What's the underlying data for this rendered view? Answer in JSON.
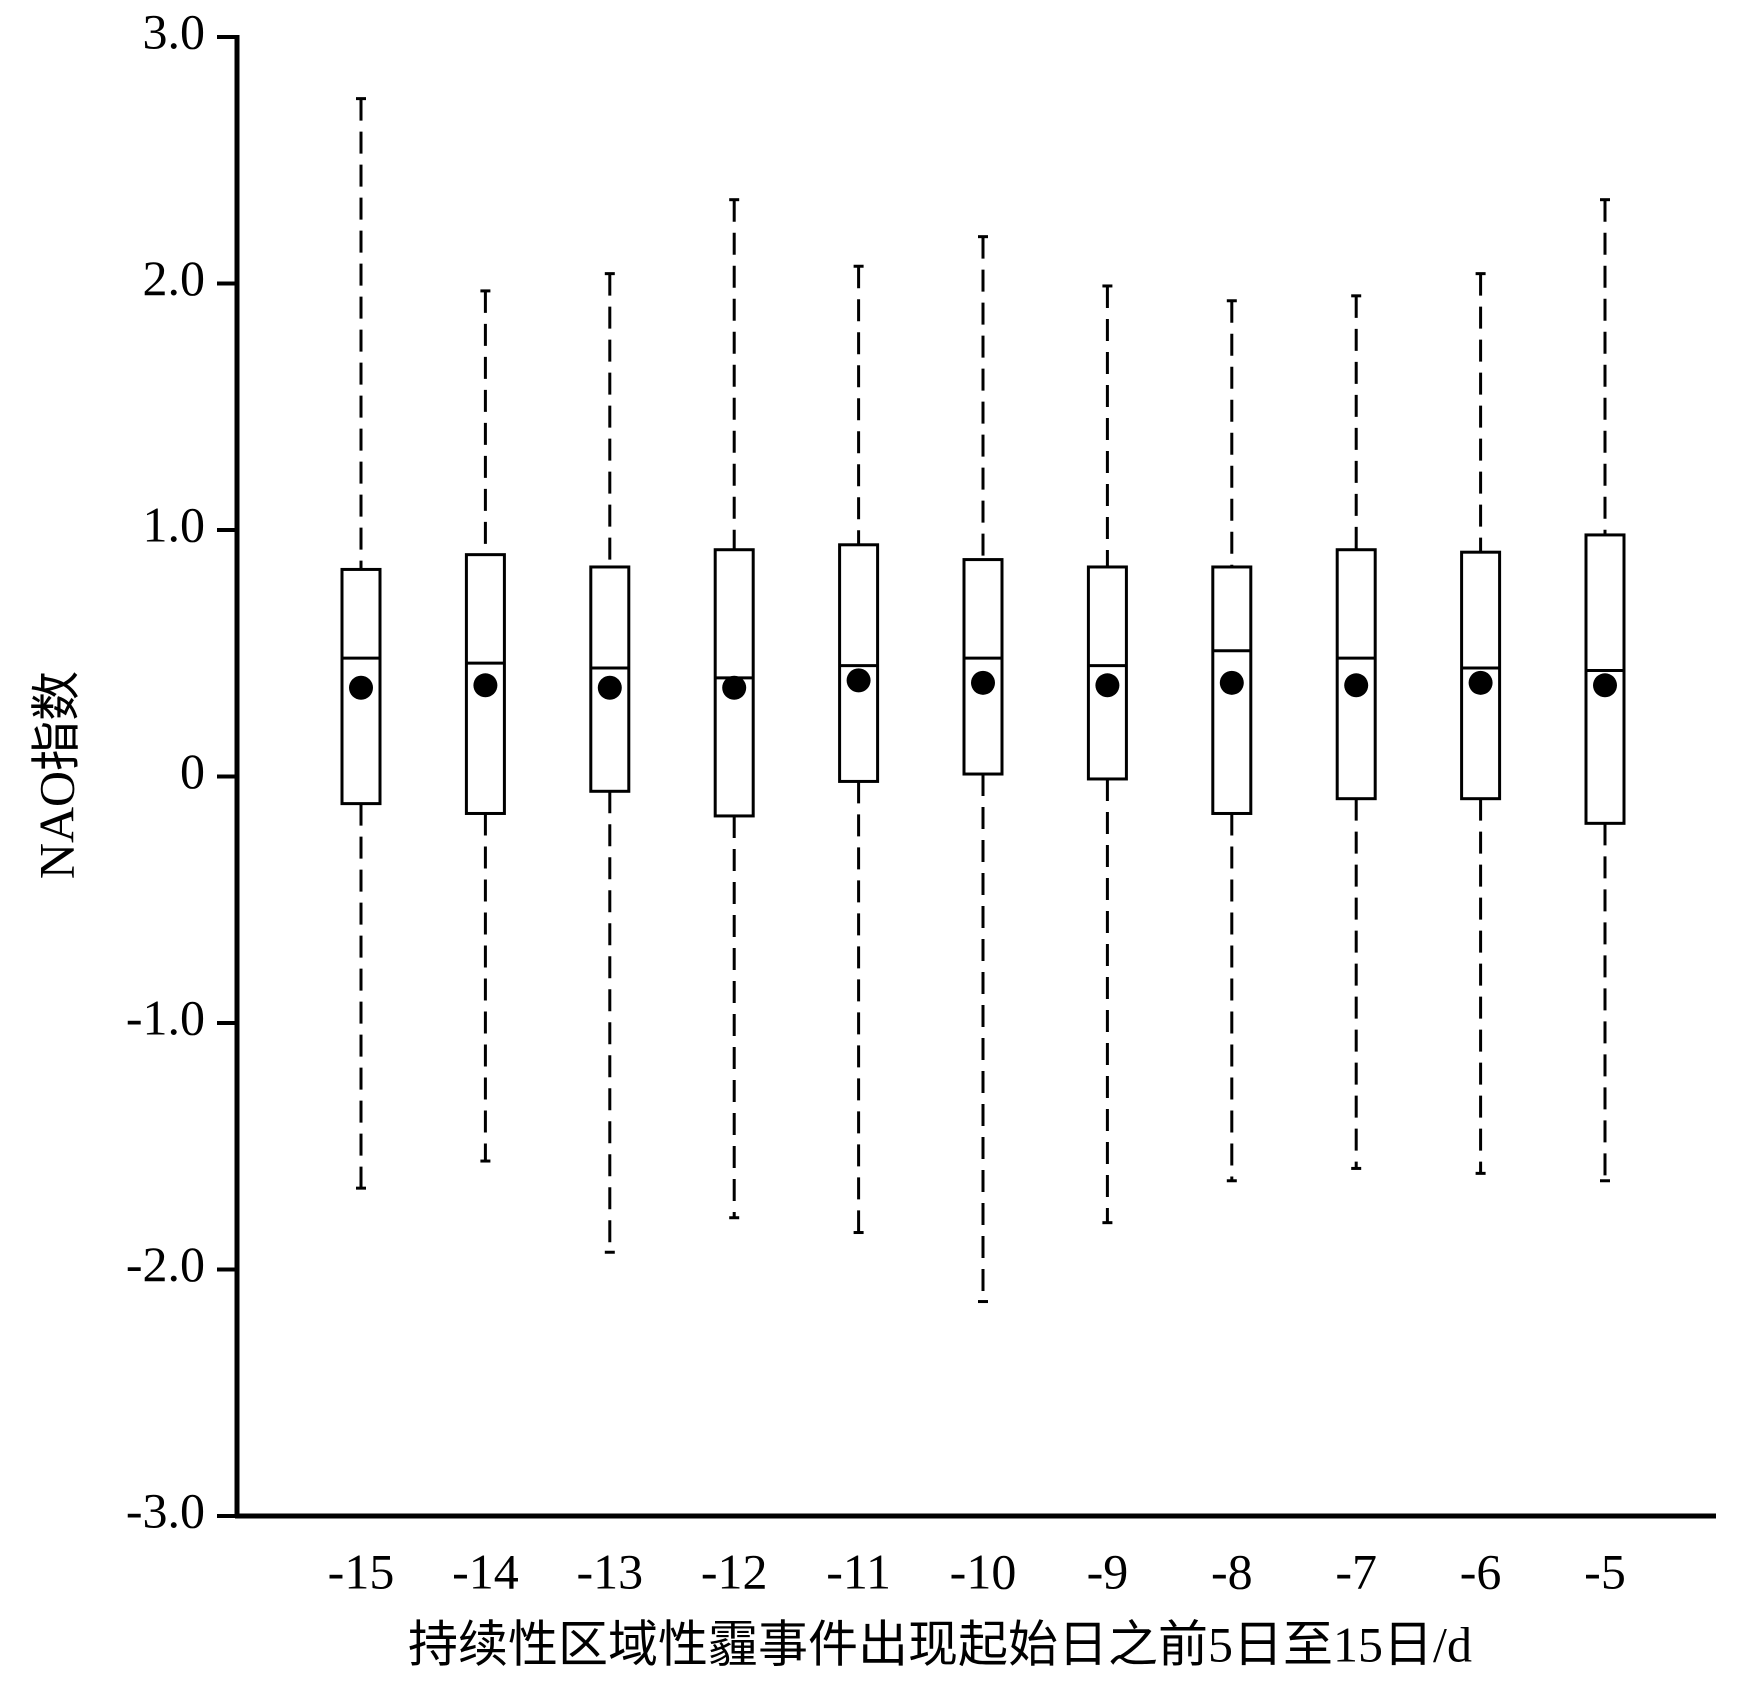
{
  "chart_data": {
    "type": "box",
    "ylabel": "NAO指数",
    "xlabel": "持续性区域性霾事件出现起始日之前5日至15日/d",
    "categories": [
      "-15",
      "-14",
      "-13",
      "-12",
      "-11",
      "-10",
      "-9",
      "-8",
      "-7",
      "-6",
      "-5"
    ],
    "whisker_high": [
      2.75,
      1.97,
      2.04,
      2.34,
      2.07,
      2.19,
      1.99,
      1.93,
      1.95,
      2.04,
      2.34
    ],
    "q3": [
      0.84,
      0.9,
      0.85,
      0.92,
      0.94,
      0.88,
      0.85,
      0.85,
      0.92,
      0.91,
      0.98
    ],
    "median": [
      0.48,
      0.46,
      0.44,
      0.4,
      0.45,
      0.48,
      0.45,
      0.51,
      0.48,
      0.44,
      0.43
    ],
    "q1": [
      -0.11,
      -0.15,
      -0.06,
      -0.16,
      -0.02,
      0.01,
      -0.01,
      -0.15,
      -0.09,
      -0.09,
      -0.19
    ],
    "whisker_low": [
      -1.67,
      -1.56,
      -1.93,
      -1.79,
      -1.85,
      -2.13,
      -1.81,
      -1.64,
      -1.59,
      -1.61,
      -1.64
    ],
    "mean": [
      0.36,
      0.37,
      0.36,
      0.36,
      0.39,
      0.38,
      0.37,
      0.38,
      0.37,
      0.38,
      0.37
    ],
    "color": "#000000",
    "ylim": [
      -3.0,
      3.0
    ],
    "yticks": [
      {
        "value": -3.0,
        "label": "-3.0"
      },
      {
        "value": -2.0,
        "label": "-2.0"
      },
      {
        "value": -1.0,
        "label": "-1.0"
      },
      0,
      {
        "value": 1.0,
        "label": "1.0"
      },
      {
        "value": 2.0,
        "label": "2.0"
      },
      {
        "value": 3.0,
        "label": "3.0"
      }
    ]
  }
}
